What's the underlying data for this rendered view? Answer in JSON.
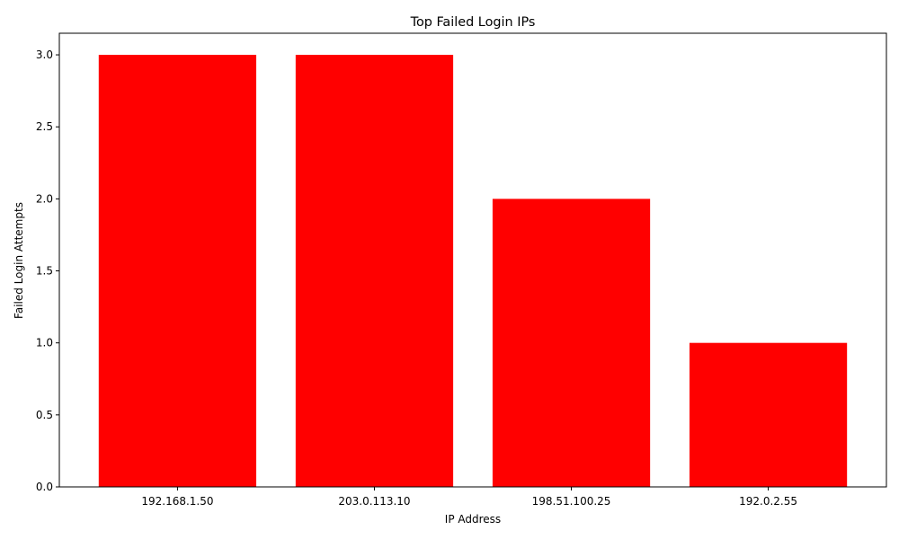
{
  "chart_data": {
    "type": "bar",
    "title": "Top Failed Login IPs",
    "xlabel": "IP Address",
    "ylabel": "Failed Login Attempts",
    "categories": [
      "192.168.1.50",
      "203.0.113.10",
      "198.51.100.25",
      "192.0.2.55"
    ],
    "values": [
      3,
      3,
      2,
      1
    ],
    "ylim": [
      0,
      3.15
    ],
    "yticks": [
      0,
      0.5,
      1,
      1.5,
      2,
      2.5,
      3
    ],
    "ytick_labels": [
      "0.0",
      "0.5",
      "1.0",
      "1.5",
      "2.0",
      "2.5",
      "3.0"
    ],
    "bar_color": "#ff0000",
    "grid": false,
    "legend": "none"
  }
}
